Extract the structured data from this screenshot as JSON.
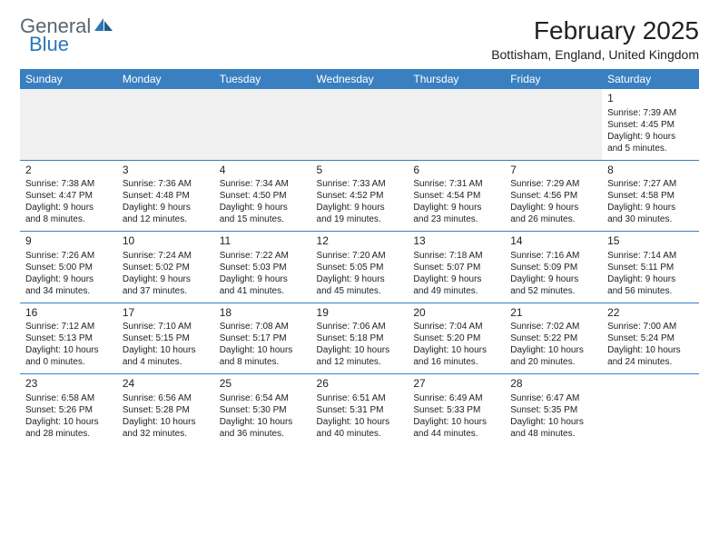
{
  "logo": {
    "general": "General",
    "blue": "Blue",
    "general_color": "#5a6570",
    "blue_color": "#2b77b8"
  },
  "header": {
    "month_title": "February 2025",
    "location": "Bottisham, England, United Kingdom"
  },
  "colors": {
    "header_bg": "#3a80c1",
    "header_text": "#ffffff",
    "blank_bg": "#f0f0f0",
    "sep": "#3a80c1"
  },
  "day_names": [
    "Sunday",
    "Monday",
    "Tuesday",
    "Wednesday",
    "Thursday",
    "Friday",
    "Saturday"
  ],
  "weeks": [
    [
      null,
      null,
      null,
      null,
      null,
      null,
      {
        "n": "1",
        "sr": "Sunrise: 7:39 AM",
        "ss": "Sunset: 4:45 PM",
        "dl1": "Daylight: 9 hours",
        "dl2": "and 5 minutes."
      }
    ],
    [
      {
        "n": "2",
        "sr": "Sunrise: 7:38 AM",
        "ss": "Sunset: 4:47 PM",
        "dl1": "Daylight: 9 hours",
        "dl2": "and 8 minutes."
      },
      {
        "n": "3",
        "sr": "Sunrise: 7:36 AM",
        "ss": "Sunset: 4:48 PM",
        "dl1": "Daylight: 9 hours",
        "dl2": "and 12 minutes."
      },
      {
        "n": "4",
        "sr": "Sunrise: 7:34 AM",
        "ss": "Sunset: 4:50 PM",
        "dl1": "Daylight: 9 hours",
        "dl2": "and 15 minutes."
      },
      {
        "n": "5",
        "sr": "Sunrise: 7:33 AM",
        "ss": "Sunset: 4:52 PM",
        "dl1": "Daylight: 9 hours",
        "dl2": "and 19 minutes."
      },
      {
        "n": "6",
        "sr": "Sunrise: 7:31 AM",
        "ss": "Sunset: 4:54 PM",
        "dl1": "Daylight: 9 hours",
        "dl2": "and 23 minutes."
      },
      {
        "n": "7",
        "sr": "Sunrise: 7:29 AM",
        "ss": "Sunset: 4:56 PM",
        "dl1": "Daylight: 9 hours",
        "dl2": "and 26 minutes."
      },
      {
        "n": "8",
        "sr": "Sunrise: 7:27 AM",
        "ss": "Sunset: 4:58 PM",
        "dl1": "Daylight: 9 hours",
        "dl2": "and 30 minutes."
      }
    ],
    [
      {
        "n": "9",
        "sr": "Sunrise: 7:26 AM",
        "ss": "Sunset: 5:00 PM",
        "dl1": "Daylight: 9 hours",
        "dl2": "and 34 minutes."
      },
      {
        "n": "10",
        "sr": "Sunrise: 7:24 AM",
        "ss": "Sunset: 5:02 PM",
        "dl1": "Daylight: 9 hours",
        "dl2": "and 37 minutes."
      },
      {
        "n": "11",
        "sr": "Sunrise: 7:22 AM",
        "ss": "Sunset: 5:03 PM",
        "dl1": "Daylight: 9 hours",
        "dl2": "and 41 minutes."
      },
      {
        "n": "12",
        "sr": "Sunrise: 7:20 AM",
        "ss": "Sunset: 5:05 PM",
        "dl1": "Daylight: 9 hours",
        "dl2": "and 45 minutes."
      },
      {
        "n": "13",
        "sr": "Sunrise: 7:18 AM",
        "ss": "Sunset: 5:07 PM",
        "dl1": "Daylight: 9 hours",
        "dl2": "and 49 minutes."
      },
      {
        "n": "14",
        "sr": "Sunrise: 7:16 AM",
        "ss": "Sunset: 5:09 PM",
        "dl1": "Daylight: 9 hours",
        "dl2": "and 52 minutes."
      },
      {
        "n": "15",
        "sr": "Sunrise: 7:14 AM",
        "ss": "Sunset: 5:11 PM",
        "dl1": "Daylight: 9 hours",
        "dl2": "and 56 minutes."
      }
    ],
    [
      {
        "n": "16",
        "sr": "Sunrise: 7:12 AM",
        "ss": "Sunset: 5:13 PM",
        "dl1": "Daylight: 10 hours",
        "dl2": "and 0 minutes."
      },
      {
        "n": "17",
        "sr": "Sunrise: 7:10 AM",
        "ss": "Sunset: 5:15 PM",
        "dl1": "Daylight: 10 hours",
        "dl2": "and 4 minutes."
      },
      {
        "n": "18",
        "sr": "Sunrise: 7:08 AM",
        "ss": "Sunset: 5:17 PM",
        "dl1": "Daylight: 10 hours",
        "dl2": "and 8 minutes."
      },
      {
        "n": "19",
        "sr": "Sunrise: 7:06 AM",
        "ss": "Sunset: 5:18 PM",
        "dl1": "Daylight: 10 hours",
        "dl2": "and 12 minutes."
      },
      {
        "n": "20",
        "sr": "Sunrise: 7:04 AM",
        "ss": "Sunset: 5:20 PM",
        "dl1": "Daylight: 10 hours",
        "dl2": "and 16 minutes."
      },
      {
        "n": "21",
        "sr": "Sunrise: 7:02 AM",
        "ss": "Sunset: 5:22 PM",
        "dl1": "Daylight: 10 hours",
        "dl2": "and 20 minutes."
      },
      {
        "n": "22",
        "sr": "Sunrise: 7:00 AM",
        "ss": "Sunset: 5:24 PM",
        "dl1": "Daylight: 10 hours",
        "dl2": "and 24 minutes."
      }
    ],
    [
      {
        "n": "23",
        "sr": "Sunrise: 6:58 AM",
        "ss": "Sunset: 5:26 PM",
        "dl1": "Daylight: 10 hours",
        "dl2": "and 28 minutes."
      },
      {
        "n": "24",
        "sr": "Sunrise: 6:56 AM",
        "ss": "Sunset: 5:28 PM",
        "dl1": "Daylight: 10 hours",
        "dl2": "and 32 minutes."
      },
      {
        "n": "25",
        "sr": "Sunrise: 6:54 AM",
        "ss": "Sunset: 5:30 PM",
        "dl1": "Daylight: 10 hours",
        "dl2": "and 36 minutes."
      },
      {
        "n": "26",
        "sr": "Sunrise: 6:51 AM",
        "ss": "Sunset: 5:31 PM",
        "dl1": "Daylight: 10 hours",
        "dl2": "and 40 minutes."
      },
      {
        "n": "27",
        "sr": "Sunrise: 6:49 AM",
        "ss": "Sunset: 5:33 PM",
        "dl1": "Daylight: 10 hours",
        "dl2": "and 44 minutes."
      },
      {
        "n": "28",
        "sr": "Sunrise: 6:47 AM",
        "ss": "Sunset: 5:35 PM",
        "dl1": "Daylight: 10 hours",
        "dl2": "and 48 minutes."
      },
      null
    ]
  ]
}
